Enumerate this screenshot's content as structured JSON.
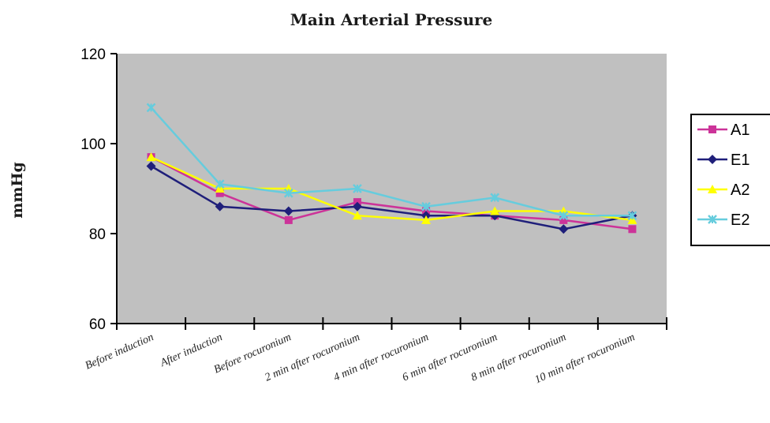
{
  "chart_data": {
    "type": "line",
    "title": "Main Arterial Pressure",
    "ylabel": "mmHg",
    "xlabel": "",
    "ylim": [
      60,
      120
    ],
    "yticks": [
      60,
      80,
      100,
      120
    ],
    "grid": false,
    "plot_background": "#c0c0c0",
    "legend_position": "right",
    "categories": [
      "Before induction",
      "After induction",
      "Before rocuronium",
      "2 min after rocuronium",
      "4 min after rocuronium",
      "6 min after rocuronium",
      "8 min after rocuronium",
      "10 min after rocuronium"
    ],
    "series": [
      {
        "name": "A1",
        "color": "#cc3399",
        "marker": "square",
        "values": [
          97,
          89,
          83,
          87,
          85,
          84,
          83,
          81
        ]
      },
      {
        "name": "E1",
        "color": "#1f1f7a",
        "marker": "diamond",
        "values": [
          95,
          86,
          85,
          86,
          84,
          84,
          81,
          84
        ]
      },
      {
        "name": "A2",
        "color": "#ffff00",
        "marker": "triangle",
        "values": [
          97,
          90,
          90,
          84,
          83,
          85,
          85,
          83
        ]
      },
      {
        "name": "E2",
        "color": "#66ccdd",
        "marker": "x",
        "values": [
          108,
          91,
          89,
          90,
          86,
          88,
          84,
          84
        ]
      }
    ]
  }
}
